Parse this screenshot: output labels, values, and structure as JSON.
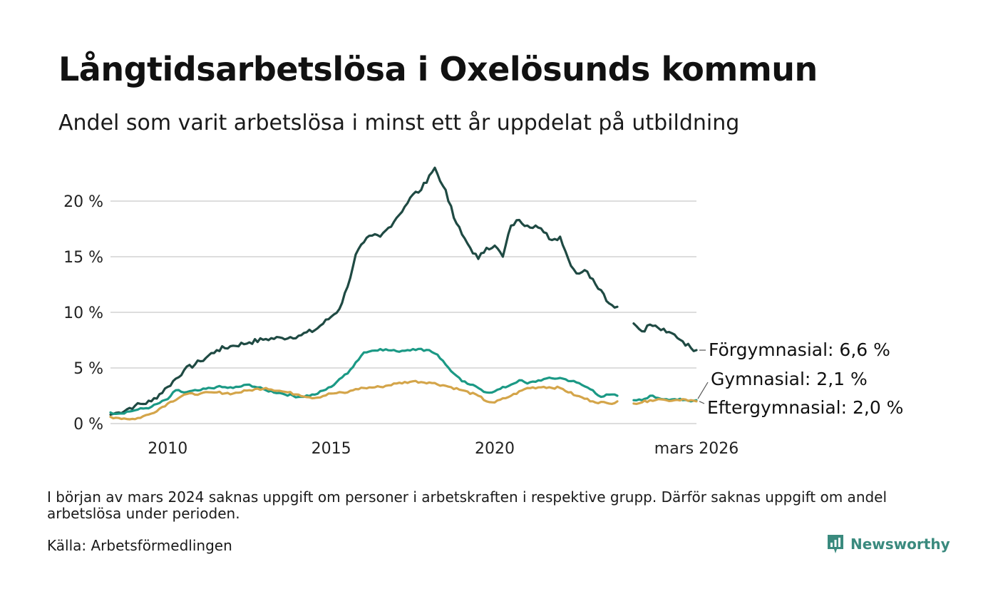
{
  "title": "Långtidsarbetslösa i Oxelösunds kommun",
  "subtitle": "Andel som varit arbetslösa i minst ett år uppdelat på utbildning",
  "note": "I början av mars 2024 saknas uppgift om personer i arbetskraften i respektive grupp. Därför saknas uppgift om andel arbetslösa under perioden.",
  "source": "Källa: Arbetsförmedlingen",
  "brand": "Newsworthy",
  "colors": {
    "forgymnasial": "#1f4a43",
    "gymnasial": "#1b9985",
    "eftergymnasial": "#d4a54a",
    "grid": "#dddddd"
  },
  "chart_data": {
    "type": "line",
    "title": "Långtidsarbetslösa i Oxelösunds kommun",
    "xlabel": "",
    "ylabel": "",
    "xlim": [
      2008.25,
      2026.17
    ],
    "ylim": [
      0,
      23
    ],
    "y_ticks": [
      0,
      5,
      10,
      15,
      20
    ],
    "y_tick_labels": [
      "0 %",
      "5 %",
      "10 %",
      "15 %",
      "20 %"
    ],
    "x_ticks": [
      2010,
      2015,
      2020,
      2026.17
    ],
    "x_tick_labels": [
      "2010",
      "2015",
      "2020",
      "mars 2026"
    ],
    "gap": [
      2023.9,
      2024.25
    ],
    "series": [
      {
        "name": "Förgymnasial",
        "end_label": "Förgymnasial: 6,6 %",
        "color_key": "forgymnasial",
        "points": [
          [
            2008.25,
            0.8
          ],
          [
            2008.5,
            1.0
          ],
          [
            2009.0,
            1.6
          ],
          [
            2009.5,
            2.0
          ],
          [
            2010.0,
            3.3
          ],
          [
            2010.5,
            4.8
          ],
          [
            2011.0,
            5.6
          ],
          [
            2011.5,
            6.6
          ],
          [
            2012.0,
            7.0
          ],
          [
            2012.5,
            7.3
          ],
          [
            2013.0,
            7.6
          ],
          [
            2013.5,
            7.7
          ],
          [
            2014.0,
            7.9
          ],
          [
            2014.5,
            8.4
          ],
          [
            2015.0,
            9.6
          ],
          [
            2015.25,
            10.3
          ],
          [
            2015.5,
            12.3
          ],
          [
            2015.75,
            15.2
          ],
          [
            2016.0,
            16.3
          ],
          [
            2016.25,
            16.9
          ],
          [
            2016.5,
            16.8
          ],
          [
            2016.75,
            17.6
          ],
          [
            2017.0,
            18.5
          ],
          [
            2017.25,
            19.5
          ],
          [
            2017.5,
            20.6
          ],
          [
            2017.75,
            21.0
          ],
          [
            2018.0,
            22.3
          ],
          [
            2018.17,
            23.0
          ],
          [
            2018.33,
            21.8
          ],
          [
            2018.5,
            21.0
          ],
          [
            2018.75,
            18.5
          ],
          [
            2019.0,
            17.0
          ],
          [
            2019.25,
            15.8
          ],
          [
            2019.5,
            14.8
          ],
          [
            2019.75,
            15.8
          ],
          [
            2020.0,
            16.0
          ],
          [
            2020.25,
            15.0
          ],
          [
            2020.5,
            17.8
          ],
          [
            2020.75,
            18.3
          ],
          [
            2021.0,
            17.8
          ],
          [
            2021.25,
            17.8
          ],
          [
            2021.5,
            17.2
          ],
          [
            2021.75,
            16.5
          ],
          [
            2022.0,
            16.8
          ],
          [
            2022.25,
            14.8
          ],
          [
            2022.5,
            13.5
          ],
          [
            2022.75,
            13.8
          ],
          [
            2023.0,
            13.0
          ],
          [
            2023.25,
            12.0
          ],
          [
            2023.5,
            10.8
          ],
          [
            2023.75,
            10.5
          ],
          [
            null,
            null
          ],
          [
            2024.25,
            9.0
          ],
          [
            2024.5,
            8.3
          ],
          [
            2024.75,
            8.9
          ],
          [
            2025.0,
            8.6
          ],
          [
            2025.25,
            8.2
          ],
          [
            2025.5,
            8.0
          ],
          [
            2025.75,
            7.4
          ],
          [
            2026.0,
            6.8
          ],
          [
            2026.17,
            6.6
          ]
        ]
      },
      {
        "name": "Gymnasial",
        "end_label": "Gymnasial: 2,1 %",
        "color_key": "gymnasial",
        "points": [
          [
            2008.25,
            1.0
          ],
          [
            2008.5,
            0.9
          ],
          [
            2009.0,
            1.2
          ],
          [
            2009.5,
            1.5
          ],
          [
            2010.0,
            2.2
          ],
          [
            2010.25,
            3.0
          ],
          [
            2010.5,
            2.8
          ],
          [
            2011.0,
            3.0
          ],
          [
            2011.5,
            3.3
          ],
          [
            2012.0,
            3.2
          ],
          [
            2012.5,
            3.5
          ],
          [
            2013.0,
            3.0
          ],
          [
            2013.5,
            2.7
          ],
          [
            2014.0,
            2.4
          ],
          [
            2014.5,
            2.6
          ],
          [
            2015.0,
            3.3
          ],
          [
            2015.25,
            4.0
          ],
          [
            2015.5,
            4.5
          ],
          [
            2015.75,
            5.5
          ],
          [
            2016.0,
            6.4
          ],
          [
            2016.5,
            6.7
          ],
          [
            2017.0,
            6.5
          ],
          [
            2017.5,
            6.7
          ],
          [
            2018.0,
            6.6
          ],
          [
            2018.25,
            6.2
          ],
          [
            2018.5,
            5.3
          ],
          [
            2018.75,
            4.5
          ],
          [
            2019.0,
            3.8
          ],
          [
            2019.25,
            3.5
          ],
          [
            2019.5,
            3.2
          ],
          [
            2019.75,
            2.8
          ],
          [
            2020.0,
            2.9
          ],
          [
            2020.5,
            3.5
          ],
          [
            2020.75,
            3.9
          ],
          [
            2021.0,
            3.6
          ],
          [
            2021.5,
            4.0
          ],
          [
            2022.0,
            4.1
          ],
          [
            2022.5,
            3.7
          ],
          [
            2023.0,
            3.0
          ],
          [
            2023.25,
            2.4
          ],
          [
            2023.5,
            2.6
          ],
          [
            2023.75,
            2.5
          ],
          [
            null,
            null
          ],
          [
            2024.25,
            2.1
          ],
          [
            2024.5,
            2.1
          ],
          [
            2024.75,
            2.5
          ],
          [
            2025.0,
            2.3
          ],
          [
            2025.25,
            2.2
          ],
          [
            2025.5,
            2.2
          ],
          [
            2025.75,
            2.1
          ],
          [
            2026.0,
            2.0
          ],
          [
            2026.17,
            2.1
          ]
        ]
      },
      {
        "name": "Eftergymnasial",
        "end_label": "Eftergymnasial: 2,0 %",
        "color_key": "eftergymnasial",
        "points": [
          [
            2008.25,
            0.6
          ],
          [
            2008.5,
            0.5
          ],
          [
            2009.0,
            0.4
          ],
          [
            2009.5,
            0.9
          ],
          [
            2010.0,
            1.8
          ],
          [
            2010.5,
            2.6
          ],
          [
            2011.0,
            2.7
          ],
          [
            2011.5,
            2.8
          ],
          [
            2012.0,
            2.7
          ],
          [
            2012.5,
            3.0
          ],
          [
            2013.0,
            3.2
          ],
          [
            2013.5,
            2.9
          ],
          [
            2014.0,
            2.6
          ],
          [
            2014.5,
            2.3
          ],
          [
            2015.0,
            2.7
          ],
          [
            2015.5,
            2.8
          ],
          [
            2015.75,
            3.1
          ],
          [
            2016.0,
            3.2
          ],
          [
            2016.5,
            3.3
          ],
          [
            2017.0,
            3.6
          ],
          [
            2017.5,
            3.8
          ],
          [
            2018.0,
            3.7
          ],
          [
            2018.5,
            3.4
          ],
          [
            2019.0,
            3.0
          ],
          [
            2019.5,
            2.5
          ],
          [
            2019.75,
            2.0
          ],
          [
            2020.0,
            1.9
          ],
          [
            2020.5,
            2.5
          ],
          [
            2021.0,
            3.2
          ],
          [
            2021.5,
            3.3
          ],
          [
            2022.0,
            3.2
          ],
          [
            2022.5,
            2.5
          ],
          [
            2023.0,
            2.0
          ],
          [
            2023.5,
            1.8
          ],
          [
            2023.75,
            2.0
          ],
          [
            null,
            null
          ],
          [
            2024.25,
            1.8
          ],
          [
            2024.5,
            1.9
          ],
          [
            2024.75,
            2.1
          ],
          [
            2025.0,
            2.2
          ],
          [
            2025.25,
            2.1
          ],
          [
            2025.5,
            2.1
          ],
          [
            2025.75,
            2.2
          ],
          [
            2026.0,
            2.1
          ],
          [
            2026.17,
            2.0
          ]
        ]
      }
    ]
  }
}
